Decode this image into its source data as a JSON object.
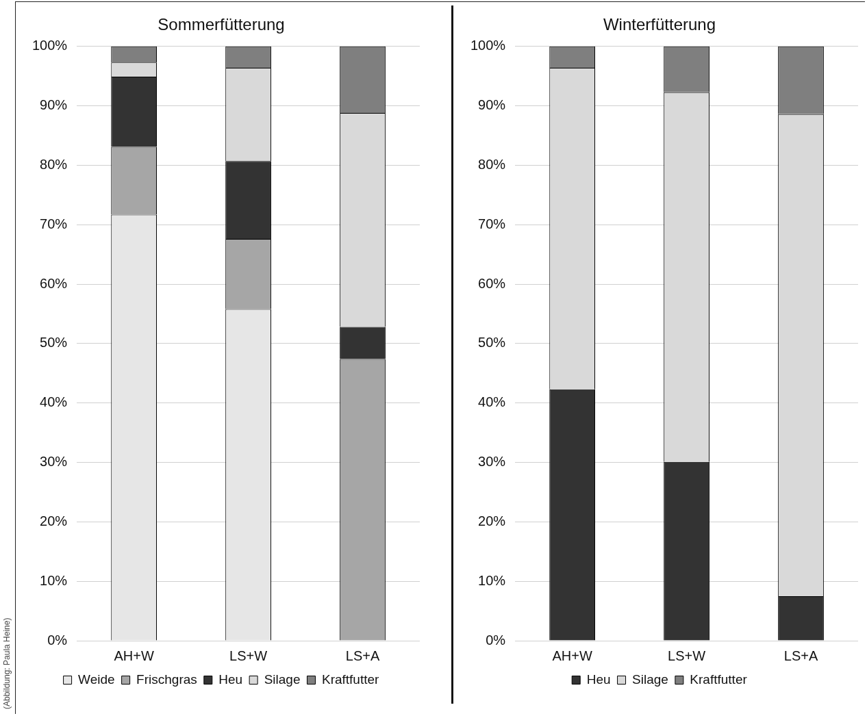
{
  "chart_data": [
    {
      "type": "bar",
      "stacked": true,
      "title": "Sommerfütterung",
      "categories": [
        "AH+W",
        "LS+W",
        "LS+A"
      ],
      "series": [
        {
          "name": "Weide",
          "color": "#e6e6e6",
          "values": [
            71.7,
            55.8,
            0
          ]
        },
        {
          "name": "Frischgras",
          "color": "#a6a6a6",
          "values": [
            11.4,
            11.8,
            47.4
          ]
        },
        {
          "name": "Heu",
          "color": "#333333",
          "values": [
            11.8,
            13.1,
            5.4
          ]
        },
        {
          "name": "Silage",
          "color": "#d9d9d9",
          "values": [
            2.4,
            15.7,
            36
          ]
        },
        {
          "name": "Kraftfutter",
          "color": "#7f7f7f",
          "values": [
            2.7,
            3.6,
            11.2
          ]
        }
      ],
      "ylim": [
        0,
        100
      ],
      "yticks": [
        {
          "value": 0,
          "label": "0%"
        },
        {
          "value": 10,
          "label": "10%"
        },
        {
          "value": 20,
          "label": "20%"
        },
        {
          "value": 30,
          "label": "30%"
        },
        {
          "value": 40,
          "label": "40%"
        },
        {
          "value": 50,
          "label": "50%"
        },
        {
          "value": 60,
          "label": "60%"
        },
        {
          "value": 70,
          "label": "70%"
        },
        {
          "value": 80,
          "label": "80%"
        },
        {
          "value": 90,
          "label": "90%"
        },
        {
          "value": 100,
          "label": "100%"
        }
      ],
      "grid": "y",
      "legend": "bottom",
      "annotations": [
        "(Abbildung: Paula Heine)"
      ]
    },
    {
      "type": "bar",
      "stacked": true,
      "title": "Winterfütterung",
      "categories": [
        "AH+W",
        "LS+W",
        "LS+A"
      ],
      "series": [
        {
          "name": "Heu",
          "color": "#333333",
          "values": [
            42.3,
            30.1,
            7.5
          ]
        },
        {
          "name": "Silage",
          "color": "#d9d9d9",
          "values": [
            54.1,
            62.2,
            81.1
          ]
        },
        {
          "name": "Kraftfutter",
          "color": "#7f7f7f",
          "values": [
            3.6,
            7.7,
            11.4
          ]
        }
      ],
      "ylim": [
        0,
        100
      ],
      "yticks": [
        {
          "value": 0,
          "label": "0%"
        },
        {
          "value": 10,
          "label": "10%"
        },
        {
          "value": 20,
          "label": "20%"
        },
        {
          "value": 30,
          "label": "30%"
        },
        {
          "value": 40,
          "label": "40%"
        },
        {
          "value": 50,
          "label": "50%"
        },
        {
          "value": 60,
          "label": "60%"
        },
        {
          "value": 70,
          "label": "70%"
        },
        {
          "value": 80,
          "label": "80%"
        },
        {
          "value": 90,
          "label": "90%"
        },
        {
          "value": 100,
          "label": "100%"
        }
      ],
      "grid": "y",
      "legend": "bottom"
    }
  ]
}
